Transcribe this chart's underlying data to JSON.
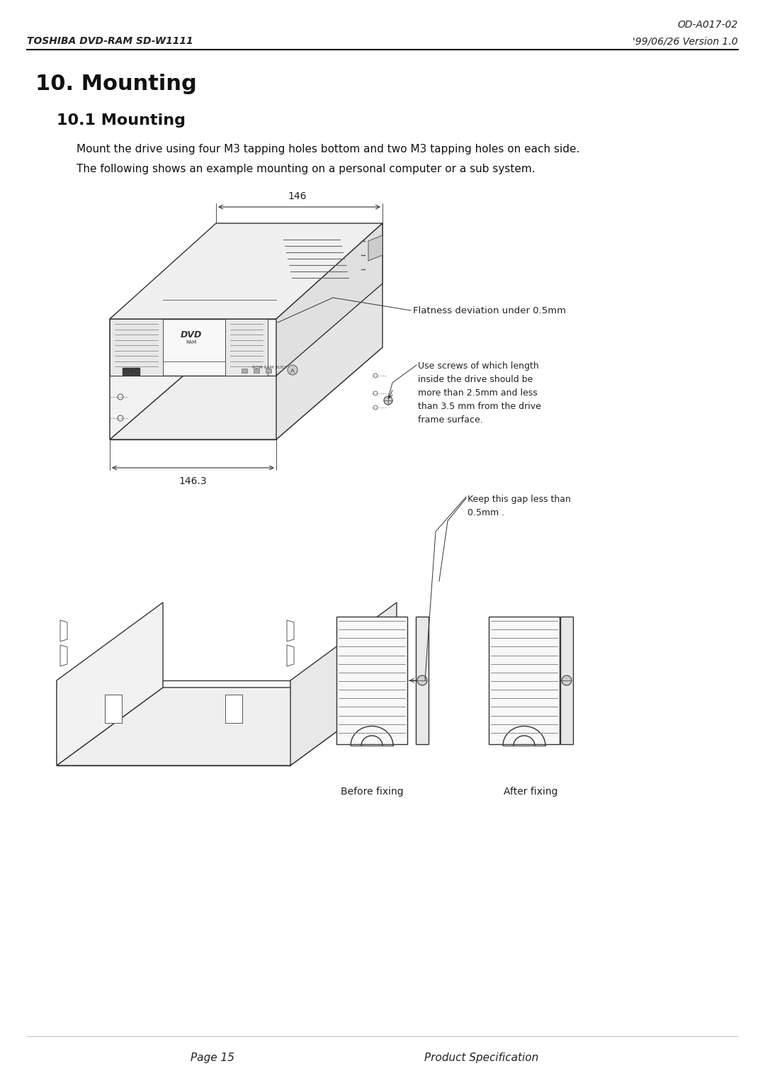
{
  "bg_color": "#ffffff",
  "header_left": "TOSHIBA DVD-RAM SD-W1111",
  "header_right": "'99/06/26 Version 1.0",
  "header_top_right": "OD-A017-02",
  "section_title": "10. Mounting",
  "subsection_title": "10.1 Mounting",
  "body_text1": "Mount the drive using four M3 tapping holes bottom and two M3 tapping holes on each side.",
  "body_text2": "The following shows an example mounting on a personal computer or a sub system.",
  "annotation1": "Flatness deviation under 0.5mm",
  "annotation2": "Use screws of which length\ninside the drive should be\nmore than 2.5mm and less\nthan 3.5 mm from the drive\nframe surface.",
  "annotation3": "Keep this gap less than\n0.5mm .",
  "dim_top": "146",
  "dim_bottom": "146.3",
  "footer_left": "Page 15",
  "footer_right": "Product Specification",
  "before_fixing": "Before fixing",
  "after_fixing": "After fixing"
}
